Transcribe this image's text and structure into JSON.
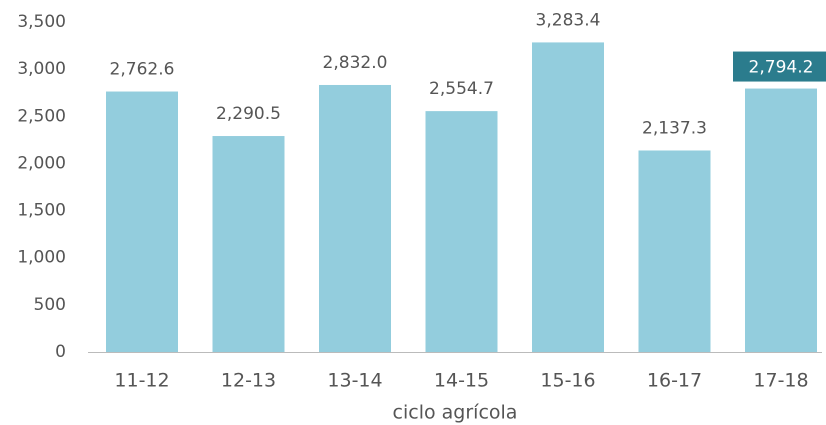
{
  "chart_data": {
    "type": "bar",
    "x_label": "ciclo agrícola",
    "categories": [
      "11-12",
      "12-13",
      "13-14",
      "14-15",
      "15-16",
      "16-17",
      "17-18"
    ],
    "values": [
      2762.6,
      2290.5,
      2832.0,
      2554.7,
      3283.4,
      2137.3,
      2794.2
    ],
    "value_labels": [
      "2,762.6",
      "2,290.5",
      "2,832.0",
      "2,554.7",
      "3,283.4",
      "2,137.3",
      "2,794.2"
    ],
    "color": "#93cddd",
    "highlight_category": "17-18",
    "highlight_color": "#2b7c8d",
    "ylim": [
      0,
      3500
    ],
    "yticks": [
      0,
      500,
      {
        "value": 1000,
        "label": "1,000"
      },
      {
        "value": 1500,
        "label": "1,500"
      },
      {
        "value": 2000,
        "label": "2,000"
      },
      {
        "value": 2500,
        "label": "2,500"
      },
      {
        "value": 3000,
        "label": "3,000"
      },
      {
        "value": 3500,
        "label": "3,500"
      }
    ],
    "grid": false
  }
}
